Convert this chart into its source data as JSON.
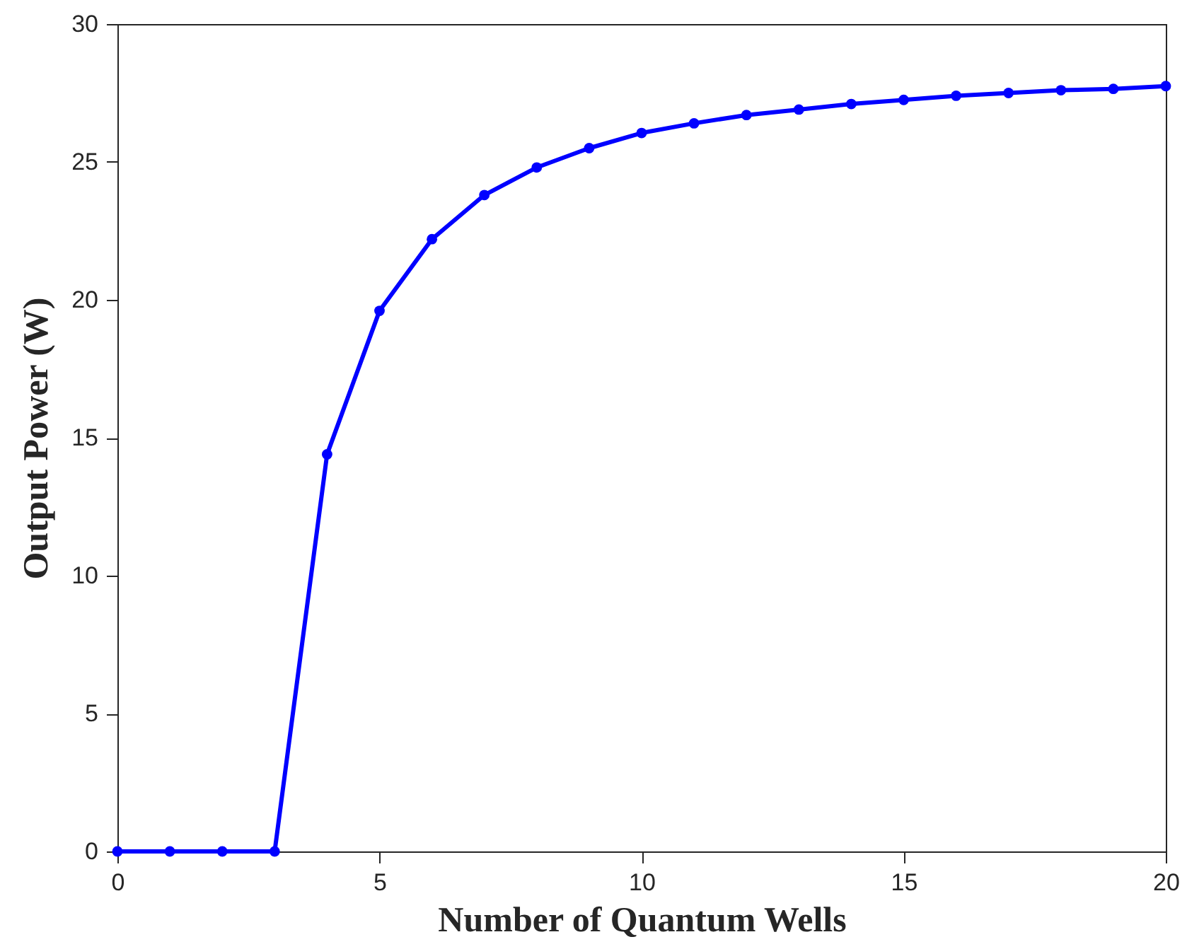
{
  "chart_data": {
    "type": "line",
    "xlabel": "Number of Quantum Wells",
    "ylabel": "Output Power (W)",
    "x": [
      0,
      1,
      2,
      3,
      4,
      5,
      6,
      7,
      8,
      9,
      10,
      11,
      12,
      13,
      14,
      15,
      16,
      17,
      18,
      19,
      20
    ],
    "series": [
      {
        "color": "#0000ff",
        "values": [
          0,
          0,
          0,
          0,
          14.4,
          19.6,
          22.2,
          23.8,
          24.8,
          25.5,
          26.05,
          26.4,
          26.7,
          26.9,
          27.1,
          27.25,
          27.4,
          27.5,
          27.6,
          27.65,
          27.75
        ]
      }
    ],
    "xlim": [
      0,
      20
    ],
    "xticks": [
      0,
      5,
      10,
      15,
      20
    ],
    "ylim": [
      0,
      30
    ],
    "yticks": [
      0,
      5,
      10,
      15,
      20,
      25,
      30
    ],
    "grid": false,
    "marker": "circle",
    "line_style": "solid"
  }
}
